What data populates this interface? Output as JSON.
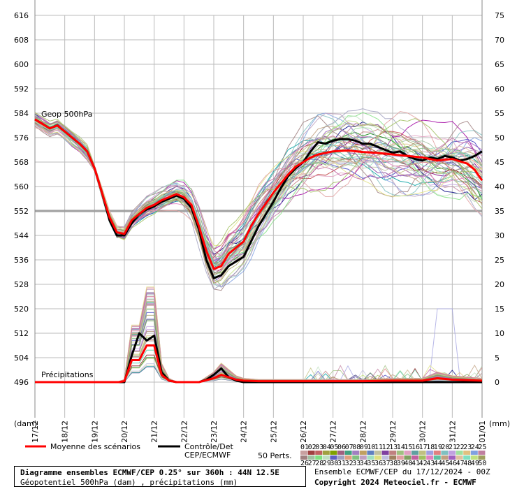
{
  "chart_data": {
    "type": "line",
    "title": "Diagramme ensembles ECMWF/CEP 0.25° sur 360h : 44N 12.5E",
    "subtitle": "Géopotentiel 500hPa (dam) , précipitations (mm)",
    "ensemble_info": "Ensemble ECMWF/CEP du 17/12/2024 - 00Z",
    "copyright": "Copyright 2024 Meteociel.fr - ECMWF",
    "left_axis_unit": "(dam)",
    "right_axis_unit": "(mm)",
    "left_ticks": [
      "616",
      "608",
      "600",
      "592",
      "584",
      "576",
      "568",
      "560",
      "552",
      "544",
      "536",
      "528",
      "520",
      "512",
      "504",
      "496"
    ],
    "right_ticks": [
      "75",
      "70",
      "65",
      "60",
      "55",
      "50",
      "45",
      "40",
      "35",
      "30",
      "25",
      "20",
      "15",
      "10",
      "5",
      "0"
    ],
    "x_ticks": [
      "17/12",
      "18/12",
      "19/12",
      "20/12",
      "21/12",
      "22/12",
      "23/12",
      "24/12",
      "25/12",
      "26/12",
      "27/12",
      "28/12",
      "29/12",
      "30/12",
      "31/12",
      "01/01"
    ],
    "ylim_left": [
      496,
      616
    ],
    "ylim_right": [
      0,
      75
    ],
    "reference_line": 552,
    "geop_label": "Geop 500hPa",
    "precip_label": "Précipitations",
    "legend": {
      "mean_label": "Moyenne des scénarios",
      "control_label_1": "Contrôle/Det",
      "control_label_2": "CEP/ECMWF",
      "perts_label": "50 Perts.",
      "perts_row1": [
        "01",
        "02",
        "03",
        "04",
        "05",
        "06",
        "07",
        "08",
        "09",
        "10",
        "11",
        "12",
        "13",
        "14",
        "15",
        "16",
        "17",
        "18",
        "19",
        "20",
        "21",
        "22",
        "23",
        "24",
        "25"
      ],
      "perts_row2": [
        "26",
        "27",
        "28",
        "29",
        "30",
        "31",
        "32",
        "33",
        "34",
        "35",
        "36",
        "37",
        "38",
        "39",
        "40",
        "41",
        "42",
        "43",
        "44",
        "45",
        "46",
        "47",
        "48",
        "49",
        "50"
      ],
      "perts_colors_row1": [
        "#c8a0a0",
        "#a04040",
        "#c06060",
        "#a0a040",
        "#80a000",
        "#a06080",
        "#40a080",
        "#a080c0",
        "#c0a060",
        "#6080c0",
        "#c0c0a0",
        "#8040a0",
        "#c08080",
        "#a0c080",
        "#e0a0c0",
        "#60a0a0",
        "#c0c080",
        "#a0a0e0",
        "#e08080",
        "#80c0c0",
        "#c0a0e0",
        "#a0e0a0",
        "#e0c080",
        "#80a0e0",
        "#c080a0"
      ],
      "perts_colors_row2": [
        "#a08080",
        "#a0c0a0",
        "#80e080",
        "#c0e0c0",
        "#6060c0",
        "#a0a0c0",
        "#e0a080",
        "#80c080",
        "#c0a0c0",
        "#a0e0c0",
        "#e0e080",
        "#c0c0e0",
        "#a08060",
        "#e0a0a0",
        "#80a060",
        "#c060a0",
        "#a0c060",
        "#e080c0",
        "#60c0a0",
        "#c0a080",
        "#a060c0",
        "#e0c0a0",
        "#80e0c0",
        "#c0e080",
        "#a0a060"
      ]
    },
    "series": [
      {
        "name": "Moyenne des scénarios",
        "color": "#ff0000",
        "geop": [
          [
            0,
            582
          ],
          [
            0.25,
            580.5
          ],
          [
            0.5,
            579
          ],
          [
            0.75,
            580
          ],
          [
            1,
            578
          ],
          [
            1.25,
            576
          ],
          [
            1.5,
            574
          ],
          [
            1.75,
            571.5
          ],
          [
            2,
            566
          ],
          [
            2.25,
            558
          ],
          [
            2.5,
            550
          ],
          [
            2.75,
            545
          ],
          [
            3,
            544.5
          ],
          [
            3.25,
            549
          ],
          [
            3.5,
            551
          ],
          [
            3.75,
            553
          ],
          [
            4,
            554
          ],
          [
            4.25,
            555.5
          ],
          [
            4.5,
            556.5
          ],
          [
            4.75,
            557.5
          ],
          [
            5,
            556.5
          ],
          [
            5.25,
            554
          ],
          [
            5.5,
            547
          ],
          [
            5.75,
            539
          ],
          [
            6,
            533
          ],
          [
            6.25,
            534
          ],
          [
            6.5,
            538
          ],
          [
            6.75,
            540
          ],
          [
            7,
            542
          ],
          [
            7.25,
            547
          ],
          [
            7.5,
            551
          ],
          [
            7.75,
            554.5
          ],
          [
            8,
            558
          ],
          [
            8.25,
            561
          ],
          [
            8.5,
            564
          ],
          [
            8.75,
            566.5
          ],
          [
            9,
            568
          ],
          [
            9.25,
            569.5
          ],
          [
            9.5,
            570.5
          ],
          [
            9.75,
            571
          ],
          [
            10,
            571.5
          ],
          [
            10.5,
            571.8
          ],
          [
            11,
            571.3
          ],
          [
            11.5,
            571
          ],
          [
            12,
            570.5
          ],
          [
            12.5,
            570
          ],
          [
            13,
            569.5
          ],
          [
            13.5,
            568.5
          ],
          [
            14,
            569
          ],
          [
            14.5,
            567.5
          ],
          [
            14.75,
            565.5
          ],
          [
            15,
            562
          ]
        ],
        "precip": [
          [
            0,
            0
          ],
          [
            2.8,
            0
          ],
          [
            3,
            0.2
          ],
          [
            3.25,
            4.5
          ],
          [
            3.5,
            4.5
          ],
          [
            3.75,
            7.5
          ],
          [
            4,
            7.5
          ],
          [
            4.25,
            1.5
          ],
          [
            4.5,
            0.3
          ],
          [
            4.75,
            0
          ],
          [
            5.5,
            0
          ],
          [
            6,
            0.8
          ],
          [
            6.25,
            1.5
          ],
          [
            6.5,
            1
          ],
          [
            6.75,
            0.5
          ],
          [
            7,
            0.3
          ],
          [
            7.5,
            0.2
          ],
          [
            8,
            0.2
          ],
          [
            9,
            0.2
          ],
          [
            10,
            0.2
          ],
          [
            11,
            0.2
          ],
          [
            12,
            0.3
          ],
          [
            13,
            0.3
          ],
          [
            13.5,
            0.8
          ],
          [
            14,
            0.5
          ],
          [
            15,
            0.3
          ]
        ]
      },
      {
        "name": "Contrôle/Det CEP/ECMWF",
        "color": "#000000",
        "geop": [
          [
            0,
            582
          ],
          [
            0.25,
            580.5
          ],
          [
            0.5,
            579
          ],
          [
            0.75,
            580
          ],
          [
            1,
            578
          ],
          [
            1.25,
            576
          ],
          [
            1.5,
            574
          ],
          [
            1.75,
            571.5
          ],
          [
            2,
            566
          ],
          [
            2.25,
            558
          ],
          [
            2.5,
            549
          ],
          [
            2.75,
            544
          ],
          [
            3,
            544
          ],
          [
            3.25,
            548
          ],
          [
            3.5,
            551
          ],
          [
            3.75,
            552.5
          ],
          [
            4,
            553.5
          ],
          [
            4.25,
            555
          ],
          [
            4.5,
            556
          ],
          [
            4.75,
            557
          ],
          [
            5,
            556
          ],
          [
            5.25,
            553
          ],
          [
            5.5,
            546
          ],
          [
            5.75,
            536
          ],
          [
            6,
            530
          ],
          [
            6.25,
            531
          ],
          [
            6.5,
            534
          ],
          [
            6.75,
            535.5
          ],
          [
            7,
            537
          ],
          [
            7.25,
            542
          ],
          [
            7.5,
            547
          ],
          [
            7.75,
            551
          ],
          [
            8,
            555
          ],
          [
            8.25,
            559.5
          ],
          [
            8.5,
            563.5
          ],
          [
            8.75,
            566
          ],
          [
            9,
            568
          ],
          [
            9.25,
            571.5
          ],
          [
            9.5,
            574.5
          ],
          [
            9.75,
            574
          ],
          [
            10,
            575
          ],
          [
            10.25,
            575.5
          ],
          [
            10.5,
            575.5
          ],
          [
            10.75,
            575
          ],
          [
            11,
            574
          ],
          [
            11.25,
            574
          ],
          [
            11.5,
            573
          ],
          [
            11.75,
            572
          ],
          [
            12,
            571
          ],
          [
            12.25,
            571.5
          ],
          [
            12.5,
            570
          ],
          [
            12.75,
            569
          ],
          [
            13,
            568.5
          ],
          [
            13.25,
            569.5
          ],
          [
            13.5,
            569
          ],
          [
            13.75,
            570
          ],
          [
            14,
            569.5
          ],
          [
            14.25,
            568.5
          ],
          [
            14.5,
            569
          ],
          [
            14.75,
            570
          ],
          [
            15,
            571.5
          ]
        ],
        "precip": [
          [
            0,
            0
          ],
          [
            3,
            0
          ],
          [
            3.25,
            5.5
          ],
          [
            3.5,
            10
          ],
          [
            3.75,
            8.5
          ],
          [
            4,
            9.5
          ],
          [
            4.25,
            2
          ],
          [
            4.5,
            0.3
          ],
          [
            4.75,
            0
          ],
          [
            5.5,
            0
          ],
          [
            5.75,
            0.5
          ],
          [
            6,
            1.5
          ],
          [
            6.25,
            2.8
          ],
          [
            6.5,
            1
          ],
          [
            6.75,
            0.3
          ],
          [
            7,
            0
          ],
          [
            15,
            0
          ]
        ]
      }
    ]
  }
}
